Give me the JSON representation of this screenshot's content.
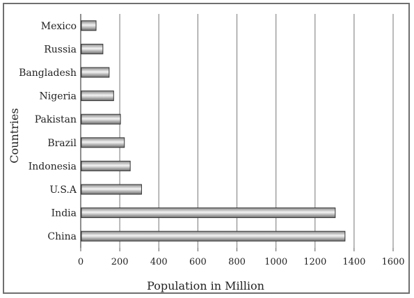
{
  "chart_data": {
    "type": "bar",
    "orientation": "horizontal",
    "categories": [
      "Mexico",
      "Russia",
      "Bangladesh",
      "Nigeria",
      "Pakistan",
      "Brazil",
      "Indonesia",
      "U.S.A",
      "India",
      "China"
    ],
    "values": [
      75,
      110,
      142,
      165,
      200,
      220,
      250,
      308,
      1300,
      1350
    ],
    "xlabel": "Population in Million",
    "ylabel": "Countries",
    "xlim": [
      0,
      1600
    ],
    "xticks": [
      0,
      200,
      400,
      600,
      800,
      1000,
      1200,
      1400,
      1600
    ],
    "grid": "vertical",
    "legend": "none",
    "colors": {
      "bar_edge": "#333333",
      "bar_light": "#f2f2f2",
      "bar_dark": "#7d7d7d",
      "grid": "#8c8c8c",
      "frame": "#6f6f6f"
    }
  }
}
